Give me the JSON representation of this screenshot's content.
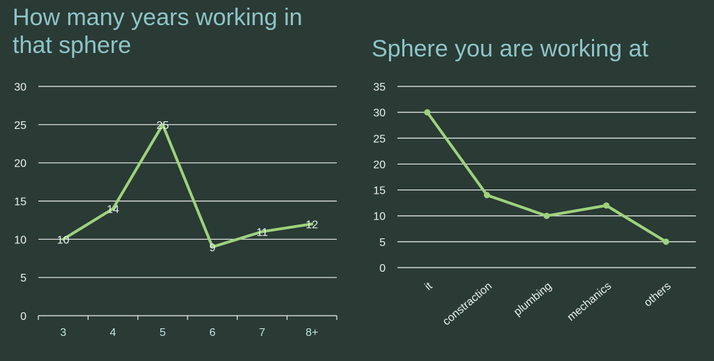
{
  "colors": {
    "background": "#2a3a34",
    "title": "#8ec5c8",
    "line": "#9ed27d",
    "grid": "#f2f6f4",
    "tick_text": "#e9f2ee"
  },
  "chart_data": [
    {
      "type": "line",
      "title": "How many years working in that sphere",
      "categories": [
        "3",
        "4",
        "5",
        "6",
        "7",
        "8+"
      ],
      "series": [
        {
          "values": [
            10,
            14,
            25,
            9,
            11,
            12
          ]
        }
      ],
      "ylim": [
        0,
        30
      ],
      "yticks": [
        "0",
        "5",
        "10",
        "15",
        "20",
        "25",
        "30"
      ],
      "data_labels": true,
      "grid": true
    },
    {
      "type": "line",
      "title": "Sphere you are working at",
      "categories": [
        "it",
        "constraction",
        "plumbing",
        "mechanics",
        "others"
      ],
      "series": [
        {
          "values": [
            30,
            14,
            10,
            12,
            5
          ]
        }
      ],
      "ylim": [
        0,
        35
      ],
      "yticks": [
        "0",
        "5",
        "10",
        "15",
        "20",
        "25",
        "30",
        "35"
      ],
      "data_labels": false,
      "grid": true
    }
  ]
}
